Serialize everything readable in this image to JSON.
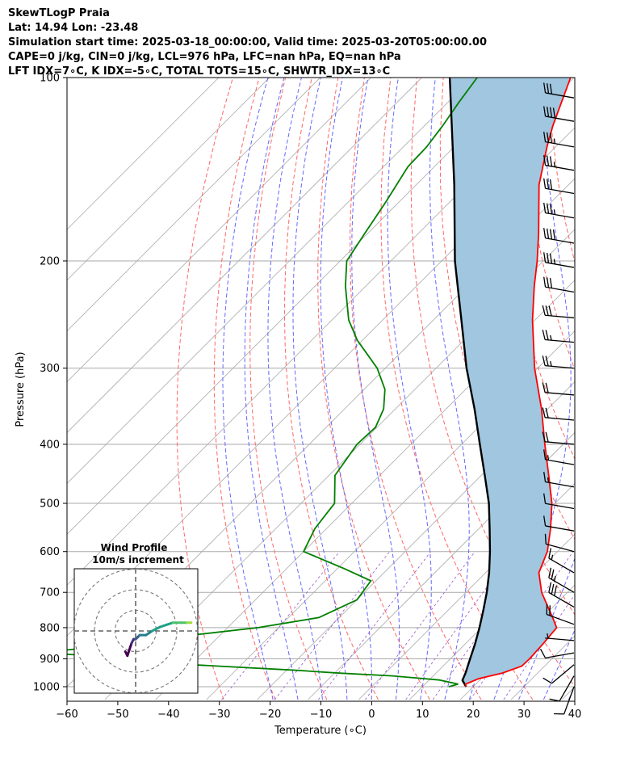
{
  "header": {
    "lines": [
      "SkewTLogP Praia",
      "Lat: 14.94   Lon: -23.48",
      "Simulation start time: 2025-03-18_00:00:00, Valid time: 2025-03-20T05:00:00.00",
      "CAPE=0 j/kg, CIN=0 j/kg, LCL=976 hPa, LFC=nan hPa, EQ=nan hPa",
      "LFT IDX=7∘C, K IDX=-5∘C, TOTAL TOTS=15∘C, SHWTR_IDX=13∘C"
    ]
  },
  "chart_data": {
    "type": "line",
    "subtype": "skew-t log-p",
    "xlabel": "Temperature (∘C)",
    "ylabel": "Pressure (hPa)",
    "xlim": [
      -60,
      40
    ],
    "ylim": [
      1050,
      100
    ],
    "x_ticks": [
      -60,
      -50,
      -40,
      -30,
      -20,
      -10,
      0,
      10,
      20,
      30,
      40
    ],
    "x_tick_labels": [
      "−60",
      "−50",
      "−40",
      "−30",
      "−20",
      "−10",
      "0",
      "10",
      "20",
      "30",
      "40"
    ],
    "y_ticks": [
      1000,
      900,
      800,
      700,
      600,
      500,
      400,
      300,
      200,
      100
    ],
    "y_scale": "log",
    "grid": true,
    "colors": {
      "temperature": "#ff0000",
      "dewpoint": "#008000",
      "parcel": "#000000",
      "cape_fill": "#a1c6df",
      "dry_adiabats": "#ff6666",
      "moist_adiabats": "#6666ff",
      "mixing_ratio": "#9955cc",
      "isotherms": "#aaaaaa"
    },
    "series": [
      {
        "key": "temperature",
        "pressure": [
          1000,
          990,
          970,
          950,
          925,
          900,
          850,
          800,
          775,
          700,
          650,
          600,
          550,
          500,
          450,
          400,
          350,
          300,
          250,
          220,
          200,
          180,
          150,
          130,
          120,
          100
        ],
        "values": [
          18.6,
          18.0,
          19.5,
          23.0,
          25.5,
          25.6,
          25.3,
          24.8,
          22.5,
          14.9,
          10.5,
          8.0,
          4.1,
          -0.6,
          -6.7,
          -13.6,
          -21.2,
          -30.6,
          -40.5,
          -46.8,
          -51.2,
          -56.4,
          -65.8,
          -71.7,
          -74.7,
          -80.7
        ]
      },
      {
        "key": "dewpoint",
        "pressure": [
          1000,
          990,
          975,
          960,
          950,
          940,
          920,
          900,
          880,
          860,
          840,
          800,
          770,
          720,
          670,
          640,
          600,
          550,
          500,
          450,
          400,
          375,
          350,
          325,
          300,
          270,
          250,
          220,
          200,
          180,
          160,
          140,
          130,
          120,
          110,
          100
        ],
        "values": [
          15.2,
          16.5,
          12.0,
          2.0,
          -9.0,
          -18.0,
          -40.0,
          -49.0,
          -72.0,
          -62.0,
          -54.0,
          -34.0,
          -24.0,
          -20.0,
          -21.0,
          -28.6,
          -40.0,
          -42.3,
          -43.4,
          -48.8,
          -50.6,
          -50.3,
          -52.3,
          -55.9,
          -61.6,
          -71.0,
          -76.7,
          -84.0,
          -88.7,
          -90.6,
          -92.6,
          -95.2,
          -95.4,
          -96.4,
          -97.8,
          -99.1
        ]
      },
      {
        "key": "parcel",
        "pressure": [
          1000,
          976,
          950,
          900,
          850,
          800,
          750,
          700,
          650,
          600,
          550,
          500,
          450,
          400,
          350,
          300,
          250,
          200,
          150,
          100
        ],
        "values": [
          18.6,
          16.6,
          15.8,
          13.9,
          11.9,
          9.6,
          7.0,
          4.1,
          0.7,
          -3.3,
          -7.9,
          -13.0,
          -19.3,
          -26.4,
          -34.4,
          -44.0,
          -54.5,
          -67.4,
          -82.5,
          -104.5
        ]
      }
    ],
    "wind_barbs": {
      "pressure": [
        1000,
        960,
        920,
        880,
        840,
        790,
        740,
        700,
        650,
        600,
        555,
        510,
        470,
        432,
        400,
        365,
        332,
        300,
        272,
        248,
        225,
        205,
        187,
        170,
        155,
        142,
        130,
        118,
        108
      ],
      "speed_kt": [
        8,
        10,
        12,
        10,
        6,
        22,
        28,
        24,
        16,
        12,
        10,
        12,
        14,
        16,
        18,
        20,
        22,
        24,
        26,
        28,
        30,
        36,
        38,
        34,
        32,
        34,
        36,
        38,
        32
      ],
      "direction_deg": [
        200,
        210,
        230,
        260,
        275,
        290,
        300,
        300,
        300,
        285,
        280,
        280,
        280,
        280,
        275,
        275,
        275,
        275,
        275,
        275,
        280,
        280,
        280,
        280,
        280,
        280,
        280,
        280,
        280
      ]
    },
    "inset": {
      "title": "Wind Profile",
      "subtitle": "10m/s increment",
      "rings_m_s": [
        10,
        20,
        30
      ],
      "hodograph_u": [
        -5,
        -4,
        -2,
        -1,
        0,
        1,
        2,
        5,
        8,
        12,
        18,
        22,
        25,
        27
      ],
      "hodograph_v": [
        -10,
        -12,
        -6,
        -4,
        -4,
        -3,
        -2,
        -2,
        0,
        2,
        4,
        4,
        4,
        4
      ]
    }
  }
}
